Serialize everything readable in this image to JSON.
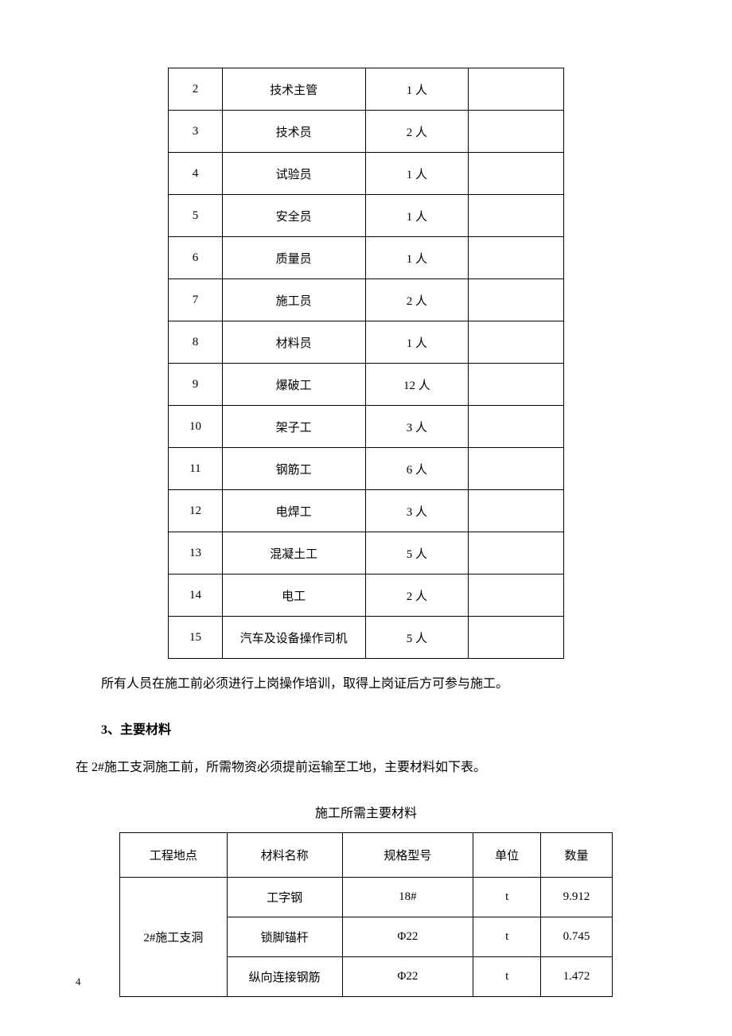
{
  "table1": {
    "rows": [
      {
        "num": "2",
        "role": "技术主管",
        "count": "1 人",
        "note": ""
      },
      {
        "num": "3",
        "role": "技术员",
        "count": "2 人",
        "note": ""
      },
      {
        "num": "4",
        "role": "试验员",
        "count": "1 人",
        "note": ""
      },
      {
        "num": "5",
        "role": "安全员",
        "count": "1 人",
        "note": ""
      },
      {
        "num": "6",
        "role": "质量员",
        "count": "1 人",
        "note": ""
      },
      {
        "num": "7",
        "role": "施工员",
        "count": "2 人",
        "note": ""
      },
      {
        "num": "8",
        "role": "材料员",
        "count": "1 人",
        "note": ""
      },
      {
        "num": "9",
        "role": "爆破工",
        "count": "12 人",
        "note": ""
      },
      {
        "num": "10",
        "role": "架子工",
        "count": "3 人",
        "note": ""
      },
      {
        "num": "11",
        "role": "钢筋工",
        "count": "6 人",
        "note": ""
      },
      {
        "num": "12",
        "role": "电焊工",
        "count": "3 人",
        "note": ""
      },
      {
        "num": "13",
        "role": "混凝土工",
        "count": "5 人",
        "note": ""
      },
      {
        "num": "14",
        "role": "电工",
        "count": "2 人",
        "note": ""
      },
      {
        "num": "15",
        "role": "汽车及设备操作司机",
        "count": "5 人",
        "note": ""
      }
    ]
  },
  "paragraph1": "所有人员在施工前必须进行上岗操作培训，取得上岗证后方可参与施工。",
  "heading": "3、主要材料",
  "paragraph2": "在 2#施工支洞施工前，所需物资必须提前运输至工地，主要材料如下表。",
  "table2": {
    "title": "施工所需主要材料",
    "headers": [
      "工程地点",
      "材料名称",
      "规格型号",
      "单位",
      "数量"
    ],
    "location": "2#施工支洞",
    "rows": [
      {
        "name": "工字钢",
        "spec": "18#",
        "unit": "t",
        "qty": "9.912"
      },
      {
        "name": "锁脚锚杆",
        "spec": "Φ22",
        "unit": "t",
        "qty": "0.745"
      },
      {
        "name": "纵向连接钢筋",
        "spec": "Φ22",
        "unit": "t",
        "qty": "1.472"
      }
    ]
  },
  "pageNumber": "4"
}
